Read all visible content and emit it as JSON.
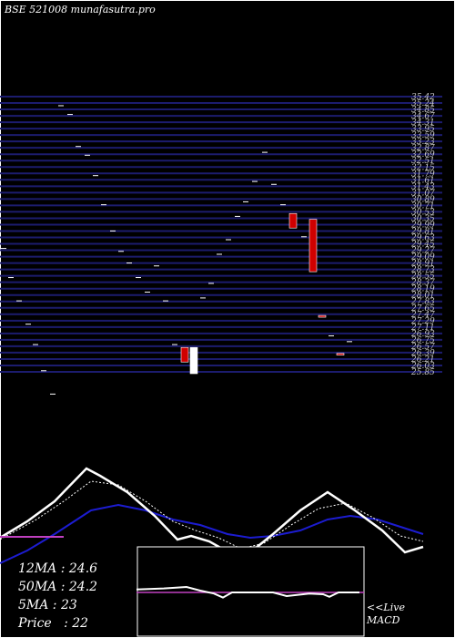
{
  "title": "BSE 521008 munafasutra.pro",
  "stats": {
    "ma12": "12MA : 24.6",
    "ma50": "50MA : 24.2",
    "ma5": "5MA : 23",
    "price": "Price   : 22"
  },
  "macd_label_1": "<<Live",
  "macd_label_2": "MACD",
  "colors": {
    "background": "#000000",
    "grid": "#1c1c6e",
    "bull": "#ffffff",
    "bear": "#d00000",
    "ma_fast": "#ffffff",
    "ma_slow": "#1c1cd0",
    "macd_signal": "#c040c0"
  },
  "chart_data": {
    "type": "candlestick",
    "price_levels": [
      "35.42",
      "35.24",
      "34.85",
      "34.67",
      "34.31",
      "33.95",
      "33.59",
      "33.23",
      "32.87",
      "32.69",
      "32.51",
      "32.15",
      "31.79",
      "31.61",
      "31.43",
      "31.07",
      "30.89",
      "30.71",
      "30.53",
      "30.35",
      "29.99",
      "29.81",
      "29.63",
      "29.45",
      "29.27",
      "29.09",
      "28.91",
      "28.73",
      "28.55",
      "28.37",
      "28.19",
      "28.01",
      "27.83",
      "27.65",
      "27.47",
      "27.29",
      "27.11",
      "26.93",
      "26.75",
      "26.57",
      "26.39",
      "26.21",
      "26.03",
      "25.85"
    ],
    "ylim": [
      25.8,
      35.5
    ],
    "dashes": [
      {
        "t": 4,
        "p": 30.1
      },
      {
        "t": 12,
        "p": 29.1
      },
      {
        "t": 21,
        "p": 28.3
      },
      {
        "t": 31,
        "p": 27.5
      },
      {
        "t": 39,
        "p": 26.8
      },
      {
        "t": 48,
        "p": 25.9
      },
      {
        "t": 58,
        "p": 25.1
      },
      {
        "t": 67,
        "p": 35.0
      },
      {
        "t": 77,
        "p": 34.7
      },
      {
        "t": 86,
        "p": 33.6
      },
      {
        "t": 96,
        "p": 33.3
      },
      {
        "t": 105,
        "p": 32.6
      },
      {
        "t": 114,
        "p": 31.6
      },
      {
        "t": 124,
        "p": 30.7
      },
      {
        "t": 133,
        "p": 30.0
      },
      {
        "t": 142,
        "p": 29.6
      },
      {
        "t": 152,
        "p": 29.1
      },
      {
        "t": 162,
        "p": 28.6
      },
      {
        "t": 172,
        "p": 29.5
      },
      {
        "t": 182,
        "p": 28.3
      },
      {
        "t": 192,
        "p": 26.8
      },
      {
        "t": 223,
        "p": 28.4
      },
      {
        "t": 232,
        "p": 28.9
      },
      {
        "t": 241,
        "p": 29.9
      },
      {
        "t": 251,
        "p": 30.4
      },
      {
        "t": 261,
        "p": 31.2
      },
      {
        "t": 270,
        "p": 31.7
      },
      {
        "t": 280,
        "p": 32.4
      },
      {
        "t": 291,
        "p": 33.4
      },
      {
        "t": 301,
        "p": 32.3
      },
      {
        "t": 311,
        "p": 31.6
      },
      {
        "t": 334,
        "p": 30.5
      },
      {
        "t": 364,
        "p": 27.1
      },
      {
        "t": 384,
        "p": 26.9
      }
    ],
    "candles": [
      {
        "t": 203,
        "o": 26.7,
        "c": 26.2,
        "h": 26.7,
        "l": 26.2
      },
      {
        "t": 213,
        "o": 25.8,
        "c": 26.7,
        "h": 26.7,
        "l": 25.8
      },
      {
        "t": 322,
        "o": 31.3,
        "c": 30.8,
        "h": 31.3,
        "l": 30.8
      },
      {
        "t": 344,
        "o": 31.1,
        "c": 29.3,
        "h": 31.1,
        "l": 29.3
      },
      {
        "t": 354,
        "o": 27.8,
        "c": 27.75,
        "h": 27.8,
        "l": 27.75
      },
      {
        "t": 374,
        "o": 26.5,
        "c": 26.45,
        "h": 26.5,
        "l": 26.45
      }
    ],
    "ma_panel": {
      "range": [
        0,
        100
      ],
      "fast_ma": [
        {
          "t": 0,
          "v": 20
        },
        {
          "t": 30,
          "v": 38
        },
        {
          "t": 60,
          "v": 60
        },
        {
          "t": 95,
          "v": 96
        },
        {
          "t": 110,
          "v": 88
        },
        {
          "t": 140,
          "v": 70
        },
        {
          "t": 170,
          "v": 44
        },
        {
          "t": 195,
          "v": 18
        },
        {
          "t": 210,
          "v": 22
        },
        {
          "t": 230,
          "v": 16
        },
        {
          "t": 255,
          "v": 2
        },
        {
          "t": 275,
          "v": 4
        },
        {
          "t": 300,
          "v": 24
        },
        {
          "t": 330,
          "v": 50
        },
        {
          "t": 360,
          "v": 70
        },
        {
          "t": 390,
          "v": 50
        },
        {
          "t": 420,
          "v": 28
        },
        {
          "t": 445,
          "v": 4
        },
        {
          "t": 465,
          "v": 10
        }
      ],
      "mid_ma": [
        {
          "t": 0,
          "v": 18
        },
        {
          "t": 40,
          "v": 40
        },
        {
          "t": 70,
          "v": 60
        },
        {
          "t": 100,
          "v": 82
        },
        {
          "t": 130,
          "v": 78
        },
        {
          "t": 160,
          "v": 60
        },
        {
          "t": 190,
          "v": 38
        },
        {
          "t": 215,
          "v": 28
        },
        {
          "t": 240,
          "v": 20
        },
        {
          "t": 265,
          "v": 8
        },
        {
          "t": 290,
          "v": 14
        },
        {
          "t": 320,
          "v": 34
        },
        {
          "t": 350,
          "v": 52
        },
        {
          "t": 380,
          "v": 58
        },
        {
          "t": 410,
          "v": 42
        },
        {
          "t": 440,
          "v": 22
        },
        {
          "t": 465,
          "v": 16
        }
      ],
      "slow_ma": [
        {
          "t": 0,
          "v": -8
        },
        {
          "t": 30,
          "v": 6
        },
        {
          "t": 60,
          "v": 24
        },
        {
          "t": 100,
          "v": 50
        },
        {
          "t": 130,
          "v": 56
        },
        {
          "t": 160,
          "v": 50
        },
        {
          "t": 190,
          "v": 40
        },
        {
          "t": 220,
          "v": 34
        },
        {
          "t": 250,
          "v": 24
        },
        {
          "t": 275,
          "v": 20
        },
        {
          "t": 300,
          "v": 22
        },
        {
          "t": 330,
          "v": 28
        },
        {
          "t": 360,
          "v": 40
        },
        {
          "t": 385,
          "v": 44
        },
        {
          "t": 415,
          "v": 40
        },
        {
          "t": 440,
          "v": 32
        },
        {
          "t": 465,
          "v": 24
        }
      ],
      "price_ref": {
        "t1": 0,
        "t2": 70,
        "v": 21
      }
    },
    "macd_panel": {
      "range": [
        -1,
        1
      ],
      "macd": [
        {
          "t": 150,
          "v": 0.16
        },
        {
          "t": 180,
          "v": 0.22
        },
        {
          "t": 205,
          "v": 0.3
        },
        {
          "t": 220,
          "v": 0.1
        },
        {
          "t": 235,
          "v": -0.06
        },
        {
          "t": 245,
          "v": -0.28
        },
        {
          "t": 255,
          "v": 0
        },
        {
          "t": 300,
          "v": 0
        },
        {
          "t": 315,
          "v": -0.2
        },
        {
          "t": 340,
          "v": -0.06
        },
        {
          "t": 355,
          "v": -0.1
        },
        {
          "t": 362,
          "v": -0.24
        },
        {
          "t": 372,
          "v": 0
        },
        {
          "t": 395,
          "v": 0
        }
      ],
      "signal": [
        {
          "t": 150,
          "v": 0
        },
        {
          "t": 400,
          "v": 0
        }
      ]
    }
  }
}
